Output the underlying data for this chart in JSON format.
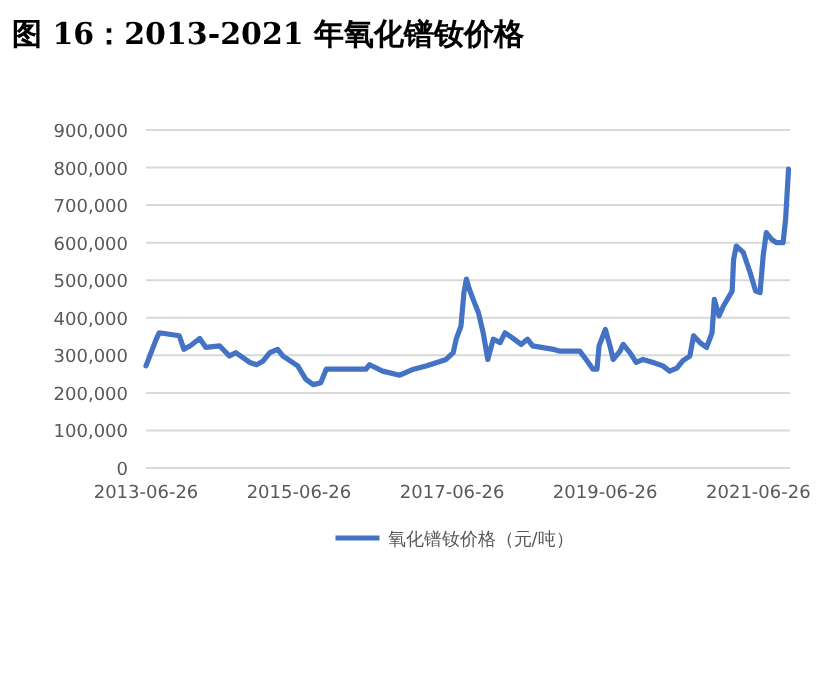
{
  "chart_data": {
    "type": "line",
    "title": "图 16：2013-2021 年氧化镨钕价格",
    "x": [
      "2013-06-26",
      "2013-08-14",
      "2013-08-28",
      "2013-12-02",
      "2013-12-24",
      "2014-01-22",
      "2014-03-09",
      "2014-04-08",
      "2014-06-13",
      "2014-07-29",
      "2014-08-28",
      "2014-11-03",
      "2014-12-06",
      "2015-01-04",
      "2015-02-07",
      "2015-03-16",
      "2015-04-11",
      "2015-06-20",
      "2015-07-29",
      "2015-09-02",
      "2015-10-08",
      "2015-11-03",
      "2016-05-10",
      "2016-05-28",
      "2016-07-29",
      "2016-10-19",
      "2016-12-24",
      "2017-02-25",
      "2017-05-28",
      "2017-07-01",
      "2017-07-15",
      "2017-08-07",
      "2017-08-21",
      "2017-09-02",
      "2017-09-16",
      "2017-10-04",
      "2017-10-29",
      "2017-11-21",
      "2017-12-13",
      "2018-01-08",
      "2018-02-10",
      "2018-03-05",
      "2018-04-11",
      "2018-05-21",
      "2018-06-20",
      "2018-07-15",
      "2018-10-22",
      "2018-11-21",
      "2019-02-25",
      "2019-03-27",
      "2019-04-29",
      "2019-05-18",
      "2019-05-28",
      "2019-06-27",
      "2019-07-19",
      "2019-08-03",
      "2019-09-05",
      "2019-09-20",
      "2019-10-22",
      "2019-11-21",
      "2019-12-24",
      "2020-02-10",
      "2020-03-27",
      "2020-04-29",
      "2020-06-02",
      "2020-07-01",
      "2020-08-03",
      "2020-08-21",
      "2020-09-20",
      "2020-10-22",
      "2020-11-17",
      "2020-11-28",
      "2020-12-20",
      "2021-01-11",
      "2021-02-21",
      "2021-02-28",
      "2021-03-13",
      "2021-04-15",
      "2021-05-18",
      "2021-06-13",
      "2021-07-04",
      "2021-07-19",
      "2021-08-03",
      "2021-08-28",
      "2021-09-20",
      "2021-10-22",
      "2021-11-03",
      "2021-11-17"
    ],
    "series": [
      {
        "name": "氧化镨钕价格（元/吨）",
        "color": "#4472c4",
        "values": [
          272000,
          343000,
          360000,
          352000,
          316000,
          325000,
          345000,
          321000,
          325000,
          298000,
          307000,
          281000,
          275000,
          284000,
          307000,
          316000,
          298000,
          272000,
          236000,
          222000,
          227000,
          263000,
          263000,
          275000,
          258000,
          247000,
          263000,
          272000,
          289000,
          307000,
          343000,
          378000,
          467000,
          503000,
          476000,
          449000,
          414000,
          360000,
          289000,
          343000,
          334000,
          360000,
          346000,
          329000,
          343000,
          325000,
          316000,
          311000,
          311000,
          289000,
          263000,
          263000,
          325000,
          369000,
          325000,
          289000,
          311000,
          329000,
          307000,
          281000,
          289000,
          281000,
          272000,
          258000,
          266000,
          286000,
          298000,
          352000,
          334000,
          321000,
          360000,
          449000,
          405000,
          432000,
          471000,
          556000,
          591000,
          574000,
          520000,
          471000,
          467000,
          565000,
          627000,
          609000,
          600000,
          600000,
          662000,
          796000
        ]
      }
    ],
    "xlim": [
      "2013-06-26",
      "2021-11-24"
    ],
    "xticks": [
      "2013-06-26",
      "2015-06-26",
      "2017-06-26",
      "2019-06-26",
      "2021-06-26"
    ],
    "ylim": [
      0,
      900000
    ],
    "yticks": [
      0,
      {
        "value": 100000,
        "label": "100,000"
      },
      {
        "value": 200000,
        "label": "200,000"
      },
      {
        "value": 300000,
        "label": "300,000"
      },
      {
        "value": 400000,
        "label": "400,000"
      },
      {
        "value": 500000,
        "label": "500,000"
      },
      {
        "value": 600000,
        "label": "600,000"
      },
      {
        "value": 700000,
        "label": "700,000"
      },
      {
        "value": 800000,
        "label": "800,000"
      },
      {
        "value": 900000,
        "label": "900,000"
      }
    ],
    "grid": "y",
    "legend": "bottom"
  }
}
